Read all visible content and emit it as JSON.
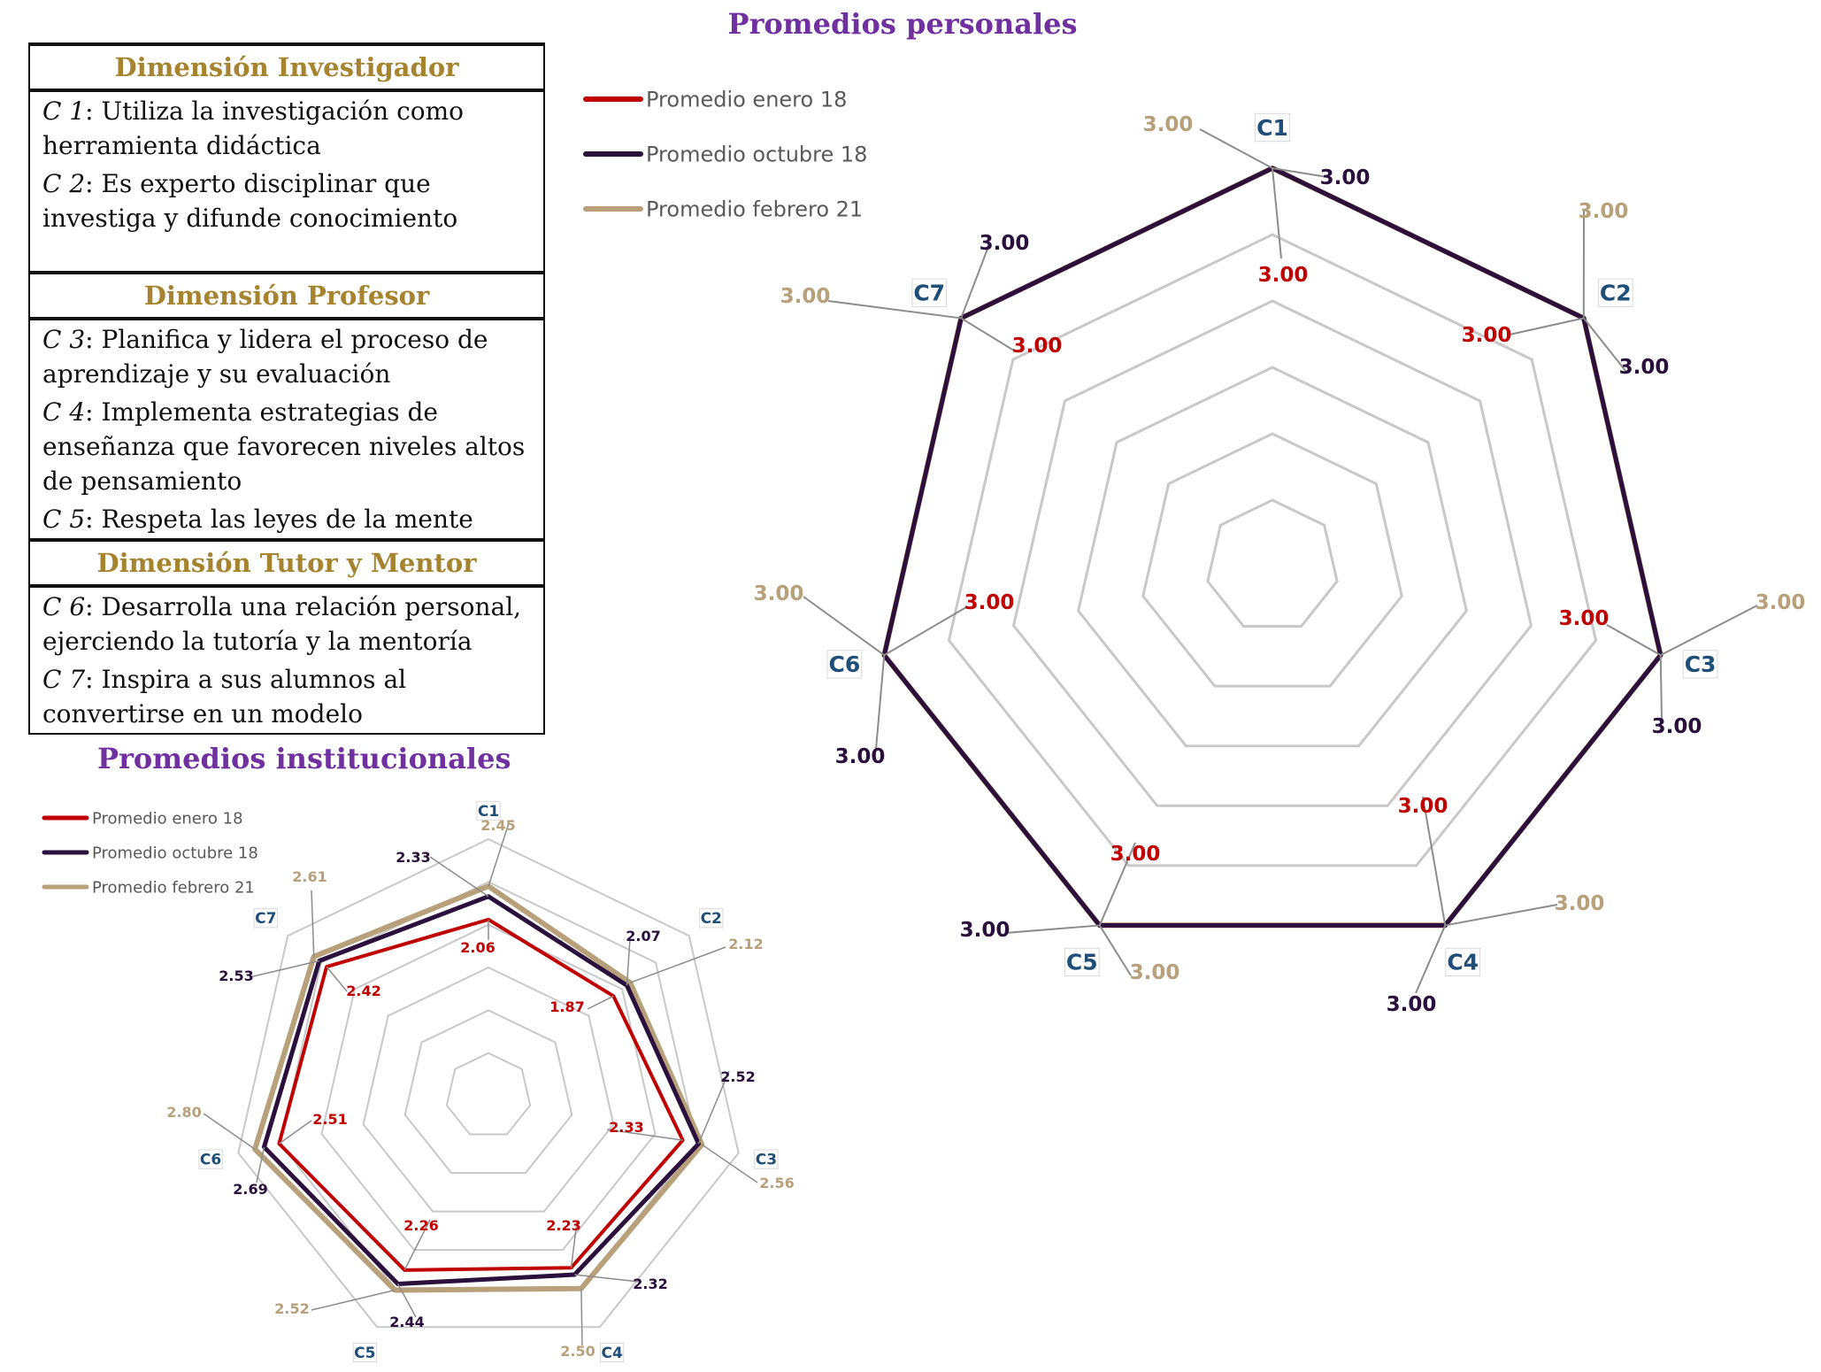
{
  "personal_title": "Promedios personales",
  "institutional_title": "Promedios institucionales",
  "dimensions": [
    {
      "title": "Dimensión Investigador",
      "criteria": [
        {
          "code": "C 1",
          "text": ": Utiliza la investigación como herramienta didáctica"
        },
        {
          "code": "C 2",
          "text": ": Es experto disciplinar que investiga y difunde conocimiento"
        }
      ]
    },
    {
      "title": "Dimensión Profesor",
      "criteria": [
        {
          "code": "C 3",
          "text": ": Planifica y lidera el proceso de aprendizaje y su evaluación"
        },
        {
          "code": "C 4",
          "text": ": Implementa estrategias de enseñanza que favorecen niveles altos de pensamiento"
        },
        {
          "code": "C 5",
          "text": ": Respeta las leyes de la mente"
        }
      ]
    },
    {
      "title": "Dimensión Tutor y Mentor",
      "criteria": [
        {
          "code": "C 6",
          "text": ": Desarrolla una relación personal, ejerciendo la tutoría y la mentoría"
        },
        {
          "code": "C 7",
          "text": ": Inspira a sus alumnos al convertirse en un modelo"
        }
      ]
    }
  ],
  "colors": {
    "enero": "#c00000",
    "octubre": "#2b0f3c",
    "febrero": "#b8a07a",
    "grid": "#c8c8c8",
    "axis_label": "#1f4e79",
    "title": "#7030a0",
    "dimension": "#a5832f"
  },
  "chart_data": [
    {
      "type": "radar",
      "title": "Promedios personales",
      "categories": [
        "C1",
        "C2",
        "C3",
        "C4",
        "C5",
        "C6",
        "C7"
      ],
      "rmax": 3,
      "rings": 6,
      "grid": true,
      "legend_position": "top-left",
      "series": [
        {
          "name": "Promedio enero 18",
          "values": [
            3.0,
            3.0,
            3.0,
            3.0,
            3.0,
            3.0,
            3.0
          ],
          "labels": [
            "3.00",
            "3.00",
            "3.00",
            "3.00",
            "3.00",
            "3.00",
            "3.00"
          ]
        },
        {
          "name": "Promedio octubre 18",
          "values": [
            3.0,
            3.0,
            3.0,
            3.0,
            3.0,
            3.0,
            3.0
          ],
          "labels": [
            "3.00",
            "3.00",
            "3.00",
            "3.00",
            "3.00",
            "3.00",
            "3.00"
          ]
        },
        {
          "name": "Promedio febrero 21",
          "values": [
            3.0,
            3.0,
            3.0,
            3.0,
            3.0,
            3.0,
            3.0
          ],
          "labels": [
            "3.00",
            "3.00",
            "3.00",
            "3.00",
            "3.00",
            "3.00",
            "3.00"
          ]
        }
      ]
    },
    {
      "type": "radar",
      "title": "Promedios institucionales",
      "categories": [
        "C1",
        "C2",
        "C3",
        "C4",
        "C5",
        "C6",
        "C7"
      ],
      "rmax": 3,
      "rings": 6,
      "grid": true,
      "legend_position": "top-left",
      "series": [
        {
          "name": "Promedio enero 18",
          "values": [
            2.06,
            1.87,
            2.33,
            2.23,
            2.26,
            2.51,
            2.42
          ],
          "labels": [
            "2.06",
            "1.87",
            "2.33",
            "2.23",
            "2.26",
            "2.51",
            "2.42"
          ]
        },
        {
          "name": "Promedio octubre 18",
          "values": [
            2.33,
            2.07,
            2.52,
            2.32,
            2.44,
            2.69,
            2.53
          ],
          "labels": [
            "2.33",
            "2.07",
            "2.52",
            "2.32",
            "2.44",
            "2.69",
            "2.53"
          ]
        },
        {
          "name": "Promedio febrero 21",
          "values": [
            2.45,
            2.12,
            2.56,
            2.5,
            2.52,
            2.8,
            2.61
          ],
          "labels": [
            "2.45",
            "2.12",
            "2.56",
            "2.50",
            "2.52",
            "2.80",
            "2.61"
          ]
        }
      ]
    }
  ]
}
